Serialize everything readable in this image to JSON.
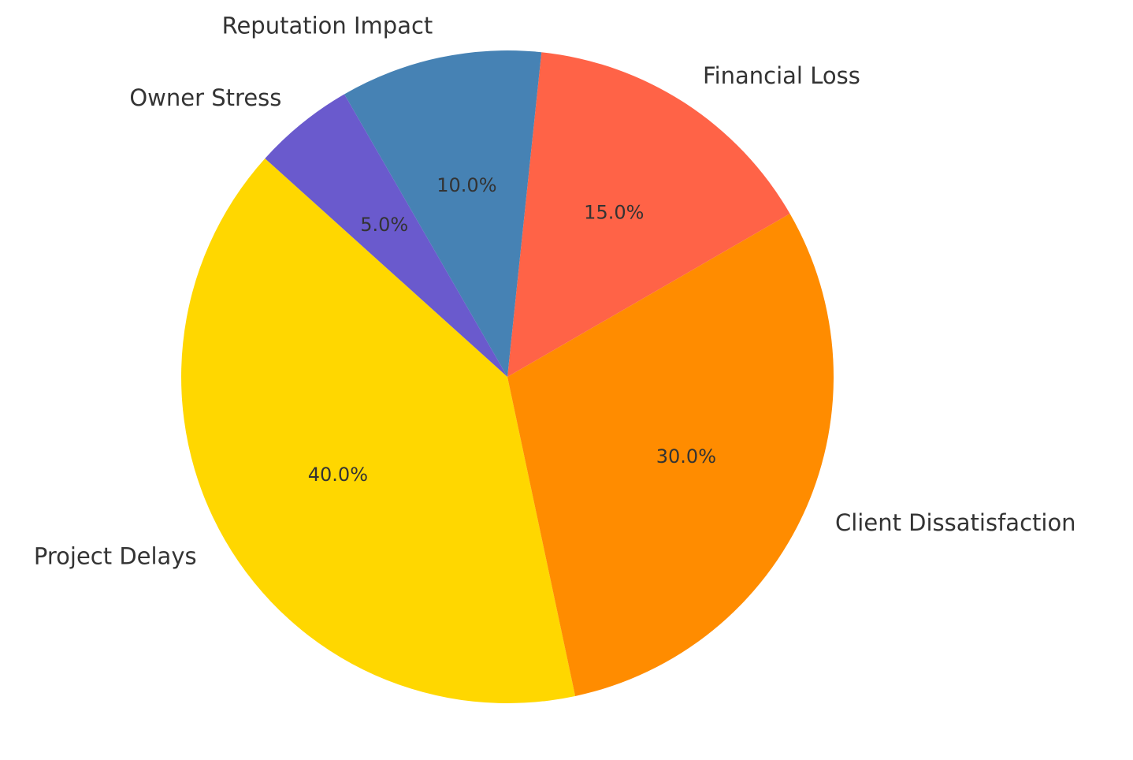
{
  "chart_data": {
    "type": "pie",
    "title": "",
    "start_angle_deg": 138,
    "direction": "counterclockwise",
    "slices": [
      {
        "label": "Project Delays",
        "value": 40.0,
        "pct_text": "40.0%",
        "color": "#FFD700"
      },
      {
        "label": "Client Dissatisfaction",
        "value": 30.0,
        "pct_text": "30.0%",
        "color": "#FF8C00"
      },
      {
        "label": "Financial Loss",
        "value": 15.0,
        "pct_text": "15.0%",
        "color": "#FF6347"
      },
      {
        "label": "Reputation Impact",
        "value": 10.0,
        "pct_text": "10.0%",
        "color": "#4682B4"
      },
      {
        "label": "Owner Stress",
        "value": 5.0,
        "pct_text": "5.0%",
        "color": "#6A5ACD"
      }
    ]
  }
}
